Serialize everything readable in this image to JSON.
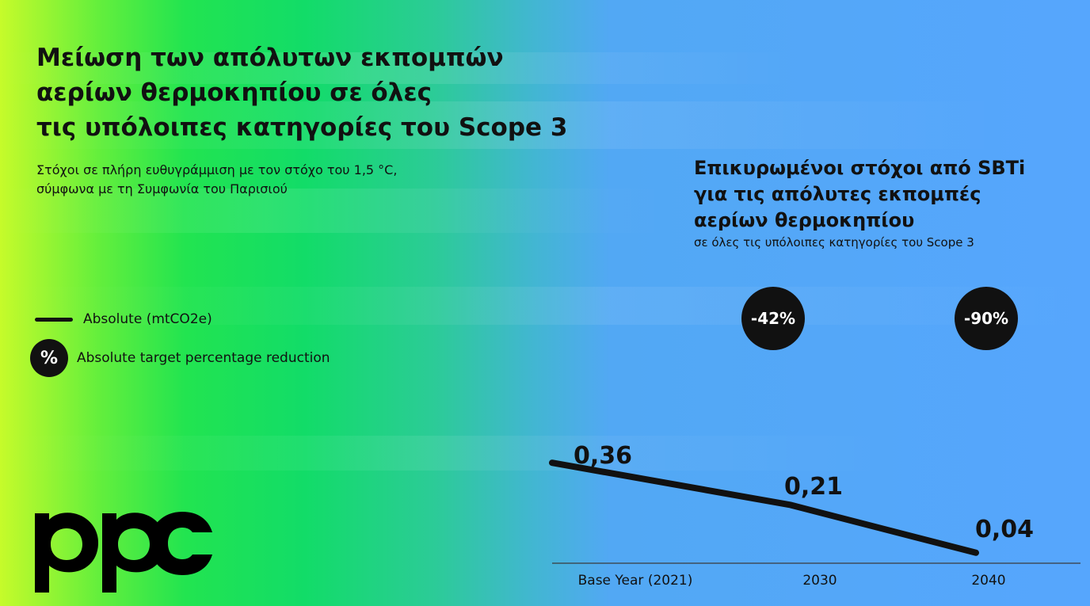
{
  "title": "Μείωση των απόλυτων εκπομπών\nαερίων θερμοκηπίου σε όλες\nτις υπόλοιπες κατηγορίες του Scope 3",
  "subtitle": "Στόχοι σε πλήρη ευθυγράμμιση με τον στόχο του 1,5 °C,\nσύμφωνα με τη Συμφωνία του Παρισιού",
  "panel": {
    "title": "Επικυρωμένοι στόχοι από SBTi\nγια τις απόλυτες εκπομπές\nαερίων θερμοκηπίου",
    "subtitle": "σε όλες τις υπόλοιπες κατηγορίες του Scope 3"
  },
  "legend": {
    "line_label": "Absolute (mtCO2e)",
    "circle_symbol": "%",
    "circle_label": "Absolute target percentage reduction"
  },
  "logo": {
    "text": "ppc"
  },
  "chart_data": {
    "type": "line",
    "x": [
      "Base Year (2021)",
      "2030",
      "2040"
    ],
    "series": [
      {
        "name": "Absolute (mtCO2e)",
        "values": [
          0.36,
          0.21,
          0.04
        ],
        "value_labels": [
          "0,36",
          "0,21",
          "0,04"
        ]
      }
    ],
    "reduction_badges": [
      {
        "x": "2030",
        "label": "-42%"
      },
      {
        "x": "2040",
        "label": "-90%"
      }
    ],
    "ylim": [
      0,
      0.4
    ],
    "grid": false
  },
  "colors": {
    "background_left": "#c6fb2a",
    "background_mid": "#12dc68",
    "background_right": "#56a6fd",
    "ink": "#111111",
    "badge_text": "#ffffff"
  }
}
